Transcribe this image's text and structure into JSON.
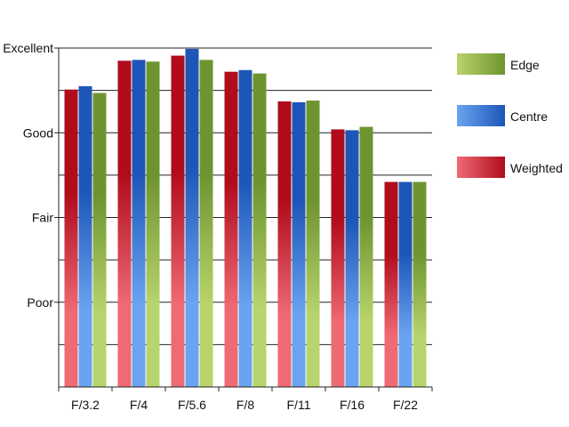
{
  "chart_data": {
    "type": "bar",
    "title": "",
    "xlabel": "",
    "ylabel": "",
    "categories": [
      "F/3.2",
      "F/4",
      "F/5.6",
      "F/8",
      "F/11",
      "F/16",
      "F/22"
    ],
    "y_tick_labels": [
      {
        "value": 4,
        "label": "Excellent"
      },
      {
        "value": 3,
        "label": "Good"
      },
      {
        "value": 2,
        "label": "Fair"
      },
      {
        "value": 1,
        "label": "Poor"
      }
    ],
    "ylim": [
      0,
      4
    ],
    "grid": true,
    "grid_step": 0.5,
    "legend_position": "right",
    "series": [
      {
        "name": "Weighted",
        "values": [
          3.51,
          3.85,
          3.91,
          3.72,
          3.37,
          3.04,
          2.42
        ],
        "color_dark": "#b00c1c",
        "color_light": "#ee6a74"
      },
      {
        "name": "Centre",
        "values": [
          3.55,
          3.86,
          3.99,
          3.74,
          3.36,
          3.03,
          2.42
        ],
        "color_dark": "#1e56b8",
        "color_light": "#6aa4f0"
      },
      {
        "name": "Edge",
        "values": [
          3.47,
          3.84,
          3.86,
          3.7,
          3.38,
          3.07,
          2.42
        ],
        "color_dark": "#6e9430",
        "color_light": "#b8d46c"
      }
    ],
    "legend_order": [
      "Edge",
      "Centre",
      "Weighted"
    ]
  }
}
